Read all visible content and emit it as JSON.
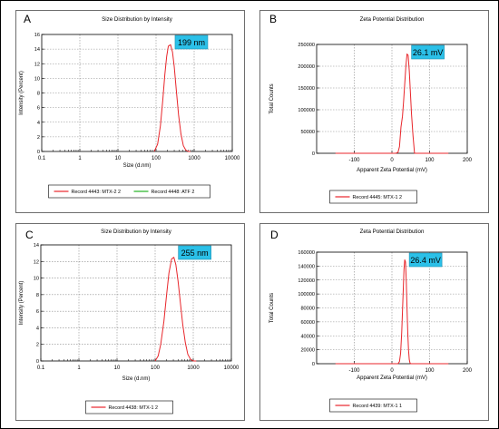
{
  "chart_data": [
    {
      "letter": "A",
      "type": "line",
      "title": "Size Distribution by Intensity",
      "xlabel": "Size (d.nm)",
      "ylabel": "Intensity (Percent)",
      "xscale": "log",
      "xlim": [
        0.1,
        10000
      ],
      "ylim": [
        0,
        16
      ],
      "xticks": [
        0.1,
        1,
        10,
        100,
        1000,
        10000
      ],
      "xtick_labels": [
        "0.1",
        "1",
        "10",
        "100",
        "1000",
        "10000"
      ],
      "yticks": [
        0,
        2,
        4,
        6,
        8,
        10,
        12,
        14,
        16
      ],
      "grid": true,
      "annotation": "199 nm",
      "series": [
        {
          "name": "Record 4443: MTX-2 2",
          "color": "#e8262b",
          "x": [
            90,
            110,
            130,
            150,
            170,
            190,
            210,
            240,
            270,
            300,
            340,
            390,
            450,
            520,
            600,
            700,
            800
          ],
          "y": [
            0,
            1.0,
            3.5,
            7.0,
            10.5,
            13.0,
            14.4,
            14.6,
            13.6,
            11.6,
            8.4,
            5.0,
            2.4,
            0.8,
            0.2,
            0,
            0
          ]
        },
        {
          "name": "Record 4448: ATF 2",
          "color": "#22b222",
          "x": [],
          "y": []
        }
      ],
      "legend": "bottom"
    },
    {
      "letter": "B",
      "type": "line",
      "title": "Zeta Potential Distribution",
      "xlabel": "Apparent Zeta Potential (mV)",
      "ylabel": "Total Counts",
      "xscale": "linear",
      "xlim": [
        -200,
        200
      ],
      "ylim": [
        0,
        250000
      ],
      "xticks": [
        -100,
        0,
        100,
        200
      ],
      "xtick_labels": [
        "-100",
        "0",
        "100",
        "200"
      ],
      "yticks": [
        0,
        50000,
        100000,
        150000,
        200000,
        250000
      ],
      "grid": true,
      "annotation": "26.1 mV",
      "series": [
        {
          "name": "Record 4445: MTX-1 2",
          "color": "#e8262b",
          "x": [
            -150,
            10,
            16,
            20,
            24,
            28,
            31,
            34,
            37,
            40,
            43,
            46,
            49,
            52,
            56,
            60,
            150
          ],
          "y": [
            0,
            0,
            2000,
            15000,
            60000,
            85000,
            120000,
            160000,
            200000,
            228000,
            225000,
            190000,
            140000,
            90000,
            40000,
            0,
            0
          ]
        }
      ],
      "legend": "bottom"
    },
    {
      "letter": "C",
      "type": "line",
      "title": "Size Distribution by Intensity",
      "xlabel": "Size (d.nm)",
      "ylabel": "Intensity (Percent)",
      "xscale": "log",
      "xlim": [
        0.1,
        10000
      ],
      "ylim": [
        0,
        14
      ],
      "xticks": [
        0.1,
        1,
        10,
        100,
        1000,
        10000
      ],
      "xtick_labels": [
        "0.1",
        "1",
        "10",
        "100",
        "1000",
        "10000"
      ],
      "yticks": [
        0,
        2,
        4,
        6,
        8,
        10,
        12,
        14
      ],
      "grid": true,
      "annotation": "255 nm",
      "series": [
        {
          "name": "Record 4438: MTX-1 2",
          "color": "#e8262b",
          "x": [
            100,
            120,
            140,
            170,
            200,
            230,
            270,
            310,
            350,
            400,
            460,
            530,
            620,
            720,
            850,
            1000,
            1200
          ],
          "y": [
            0,
            0.6,
            2.0,
            4.8,
            8.0,
            10.6,
            12.3,
            12.5,
            11.6,
            9.6,
            7.0,
            4.4,
            2.2,
            0.8,
            0.2,
            0,
            0
          ]
        }
      ],
      "legend": "bottom"
    },
    {
      "letter": "D",
      "type": "line",
      "title": "Zeta Potential Distribution",
      "xlabel": "Apparent Zeta Potential (mV)",
      "ylabel": "Total Counts",
      "xscale": "linear",
      "xlim": [
        -200,
        200
      ],
      "ylim": [
        0,
        160000
      ],
      "xticks": [
        -100,
        0,
        100,
        200
      ],
      "xtick_labels": [
        "-100",
        "0",
        "100",
        "200"
      ],
      "yticks": [
        0,
        20000,
        40000,
        60000,
        80000,
        100000,
        120000,
        140000,
        160000
      ],
      "grid": true,
      "annotation": "26.4 mV",
      "series": [
        {
          "name": "Record 4439: MTX-1 1",
          "color": "#e8262b",
          "x": [
            -150,
            16,
            20,
            23,
            26,
            29,
            32,
            34,
            36,
            38,
            40,
            42,
            44,
            46,
            48,
            50,
            150
          ],
          "y": [
            0,
            0,
            3000,
            15000,
            45000,
            90000,
            135000,
            149000,
            146000,
            120000,
            80000,
            45000,
            20000,
            6000,
            1000,
            0,
            0
          ]
        }
      ],
      "legend": "bottom"
    }
  ]
}
